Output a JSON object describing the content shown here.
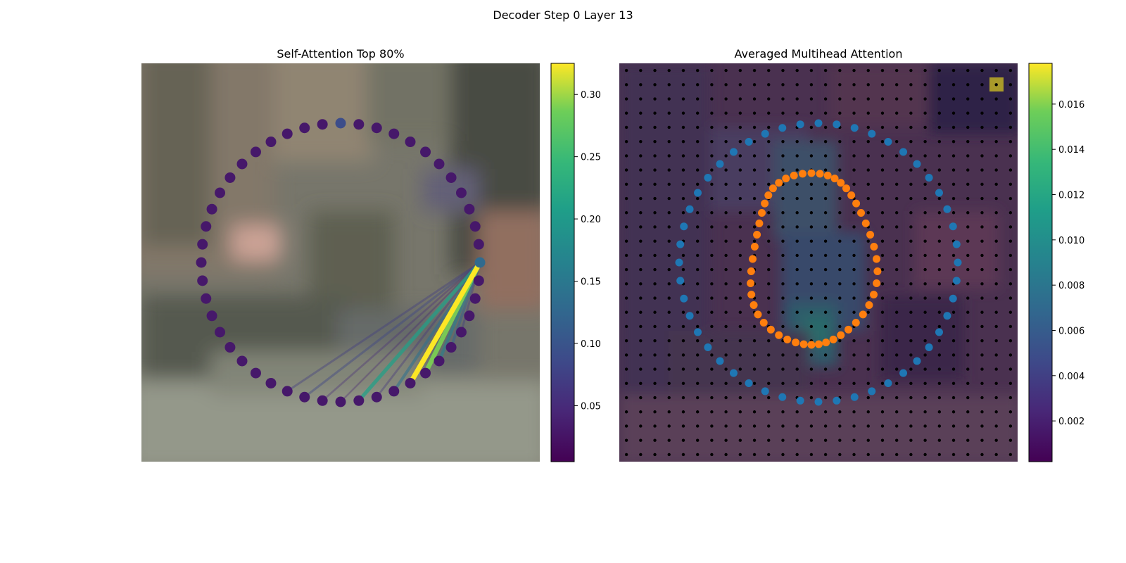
{
  "figure": {
    "suptitle": "Decoder Step 0 Layer 13"
  },
  "chart_data": [
    {
      "type": "scatter",
      "title": "Self-Attention Top 80%",
      "description_kind": "ring of 48 points over a blurred street-scene image; query point with attention lines to others",
      "colormap": "viridis",
      "colorbar": {
        "range": [
          0.005,
          0.325
        ],
        "ticks": [
          0.05,
          0.1,
          0.15,
          0.2,
          0.25,
          0.3
        ],
        "tick_labels": [
          "0.05",
          "0.10",
          "0.15",
          "0.20",
          "0.25",
          "0.30"
        ]
      },
      "num_points": 48,
      "query_point_index": 0,
      "point_attention": [
        0.13,
        0.03,
        0.03,
        0.03,
        0.03,
        0.03,
        0.03,
        0.03,
        0.03,
        0.03,
        0.03,
        0.03,
        0.09,
        0.03,
        0.03,
        0.03,
        0.03,
        0.03,
        0.03,
        0.03,
        0.03,
        0.03,
        0.03,
        0.03,
        0.03,
        0.03,
        0.03,
        0.03,
        0.03,
        0.03,
        0.03,
        0.03,
        0.03,
        0.03,
        0.03,
        0.03,
        0.03,
        0.03,
        0.03,
        0.03,
        0.03,
        0.03,
        0.03,
        0.03,
        0.03,
        0.03,
        0.03,
        0.03
      ],
      "lines": [
        {
          "to": 44,
          "value": 0.07
        },
        {
          "to": 43,
          "value": 0.12
        },
        {
          "to": 42,
          "value": 0.16
        },
        {
          "to": 41,
          "value": 0.29
        },
        {
          "to": 40,
          "value": 0.33
        },
        {
          "to": 39,
          "value": 0.14
        },
        {
          "to": 38,
          "value": 0.06
        },
        {
          "to": 36,
          "value": 0.04
        },
        {
          "to": 35,
          "value": 0.05
        },
        {
          "to": 37,
          "value": 0.21
        },
        {
          "to": 34,
          "value": 0.08
        },
        {
          "to": 33,
          "value": 0.07
        }
      ]
    },
    {
      "type": "heatmap",
      "title": "Averaged Multihead Attention",
      "colormap": "viridis",
      "colorbar": {
        "range": [
          0.0002,
          0.0178
        ],
        "ticks": [
          0.002,
          0.004,
          0.006,
          0.008,
          0.01,
          0.012,
          0.014,
          0.016
        ],
        "tick_labels": [
          "0.002",
          "0.004",
          "0.006",
          "0.008",
          "0.010",
          "0.012",
          "0.014",
          "0.016"
        ]
      },
      "grid_size": 28,
      "peak_cell": {
        "row": 1,
        "col": 26,
        "value": 0.0178
      },
      "series": [
        {
          "color": "#1f77b4",
          "shape": "ring",
          "count": 48
        },
        {
          "color": "#ff7f0e",
          "shape": "inner-ring",
          "count": 48
        }
      ],
      "grid_points_color": "#000000"
    }
  ]
}
